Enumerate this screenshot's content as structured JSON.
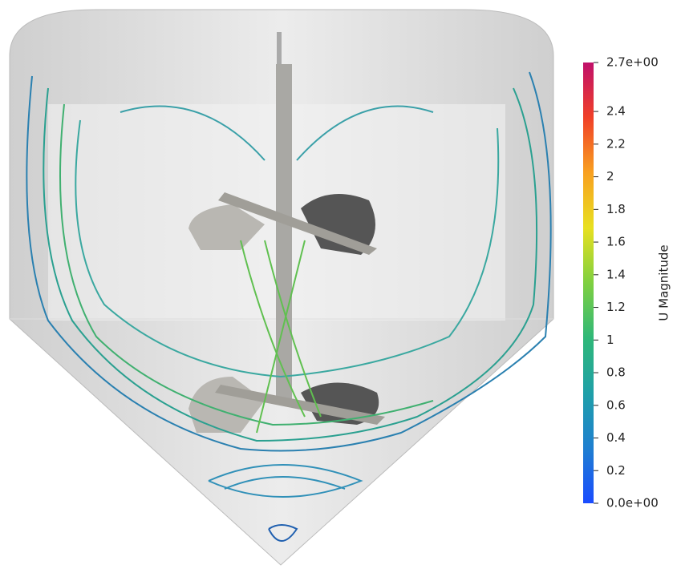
{
  "colorbar": {
    "title": "U Magnitude",
    "range": [
      0,
      2.7
    ],
    "ticks": [
      {
        "value": 0,
        "label": "0.0e+00"
      },
      0.2,
      0.4,
      0.6,
      0.8,
      1,
      1.2,
      1.4,
      1.6,
      1.8,
      2,
      2.2,
      2.4,
      {
        "value": 2.7,
        "label": "2.7e+00"
      }
    ],
    "colors": [
      "#1a4cff",
      "#1f7fd0",
      "#1fa0a8",
      "#2fb878",
      "#7fd040",
      "#e8e020",
      "#f8a020",
      "#f04028",
      "#c0106a"
    ]
  }
}
